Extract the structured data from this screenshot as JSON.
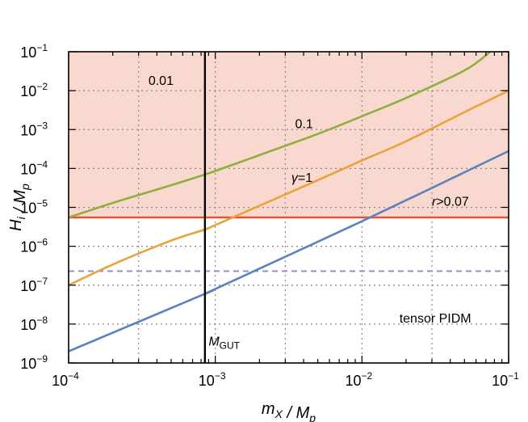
{
  "chart_data": {
    "type": "line",
    "xlabel": "m_X / M_p",
    "ylabel": "H_i / M_p",
    "xscale": "log",
    "yscale": "log",
    "xlim": [
      0.0001,
      0.1
    ],
    "ylim": [
      1e-09,
      0.1
    ],
    "grid": true,
    "x_ticks": [
      {
        "base": "10",
        "exp": "−4",
        "value": 0.0001
      },
      {
        "base": "10",
        "exp": "−3",
        "value": 0.001
      },
      {
        "base": "10",
        "exp": "−2",
        "value": 0.01
      },
      {
        "base": "10",
        "exp": "−1",
        "value": 0.1
      }
    ],
    "y_ticks": [
      {
        "base": "10",
        "exp": "−9",
        "value": 1e-09
      },
      {
        "base": "10",
        "exp": "−8",
        "value": 1e-08
      },
      {
        "base": "10",
        "exp": "−7",
        "value": 1e-07
      },
      {
        "base": "10",
        "exp": "−6",
        "value": 1e-06
      },
      {
        "base": "10",
        "exp": "−5",
        "value": 1e-05
      },
      {
        "base": "10",
        "exp": "−4",
        "value": 0.0001
      },
      {
        "base": "10",
        "exp": "−3",
        "value": 0.001
      },
      {
        "base": "10",
        "exp": "−2",
        "value": 0.01
      },
      {
        "base": "10",
        "exp": "−1",
        "value": 0.1
      }
    ],
    "series": [
      {
        "name": "0.01",
        "color": "#8db03c",
        "x": [
          0.0001,
          0.0002,
          0.0005,
          0.00085,
          0.001,
          0.002,
          0.005,
          0.01,
          0.02,
          0.05,
          0.075
        ],
        "y": [
          5.5e-06,
          1.3e-05,
          3.7e-05,
          7e-05,
          8.6e-05,
          0.00022,
          0.00077,
          0.0022,
          0.0065,
          0.033,
          0.1
        ]
      },
      {
        "name": "0.1",
        "color": "#e9a33b",
        "x": [
          0.0001,
          0.0002,
          0.0005,
          0.00085,
          0.001,
          0.002,
          0.005,
          0.01,
          0.02,
          0.05,
          0.1
        ],
        "y": [
          1e-07,
          3.4e-07,
          1.4e-06,
          2.7e-06,
          3.5e-06,
          1.1e-05,
          5e-05,
          0.00016,
          0.0005,
          0.0028,
          0.01
        ]
      },
      {
        "name": "γ=1",
        "color": "#5b82be",
        "x": [
          0.0001,
          0.00085,
          0.001,
          0.01,
          0.1
        ],
        "y": [
          2e-09,
          6e-08,
          8e-08,
          4.4e-06,
          0.00028
        ]
      }
    ],
    "horizontal_lines": [
      {
        "name": "r>0.07",
        "y": 5.5e-06,
        "color": "#e8532f",
        "style": "solid"
      },
      {
        "y": 2.3e-07,
        "color": "#9a8fc4",
        "style": "dashed"
      }
    ],
    "vertical_lines": [
      {
        "name": "M_GUT",
        "x": 0.00085,
        "color": "#000000"
      }
    ],
    "shaded_region": {
      "y_min": 5.5e-06,
      "y_max": 0.1,
      "color": "#f8d8cf"
    },
    "annotations": [
      {
        "text": "0.01",
        "x": 0.00035,
        "y": 0.014
      },
      {
        "text": "0.1",
        "x": 0.0035,
        "y": 0.0011
      },
      {
        "text": "γ=1",
        "x": 0.0033,
        "y": 4.5e-05
      },
      {
        "text": "r>0.07",
        "x": 0.03,
        "y": 1.1e-05
      },
      {
        "text": "tensor PIDM",
        "x": 0.018,
        "y": 1.1e-08
      },
      {
        "text": "M_GUT",
        "x": 0.0009,
        "y": 2.8e-09
      }
    ]
  }
}
